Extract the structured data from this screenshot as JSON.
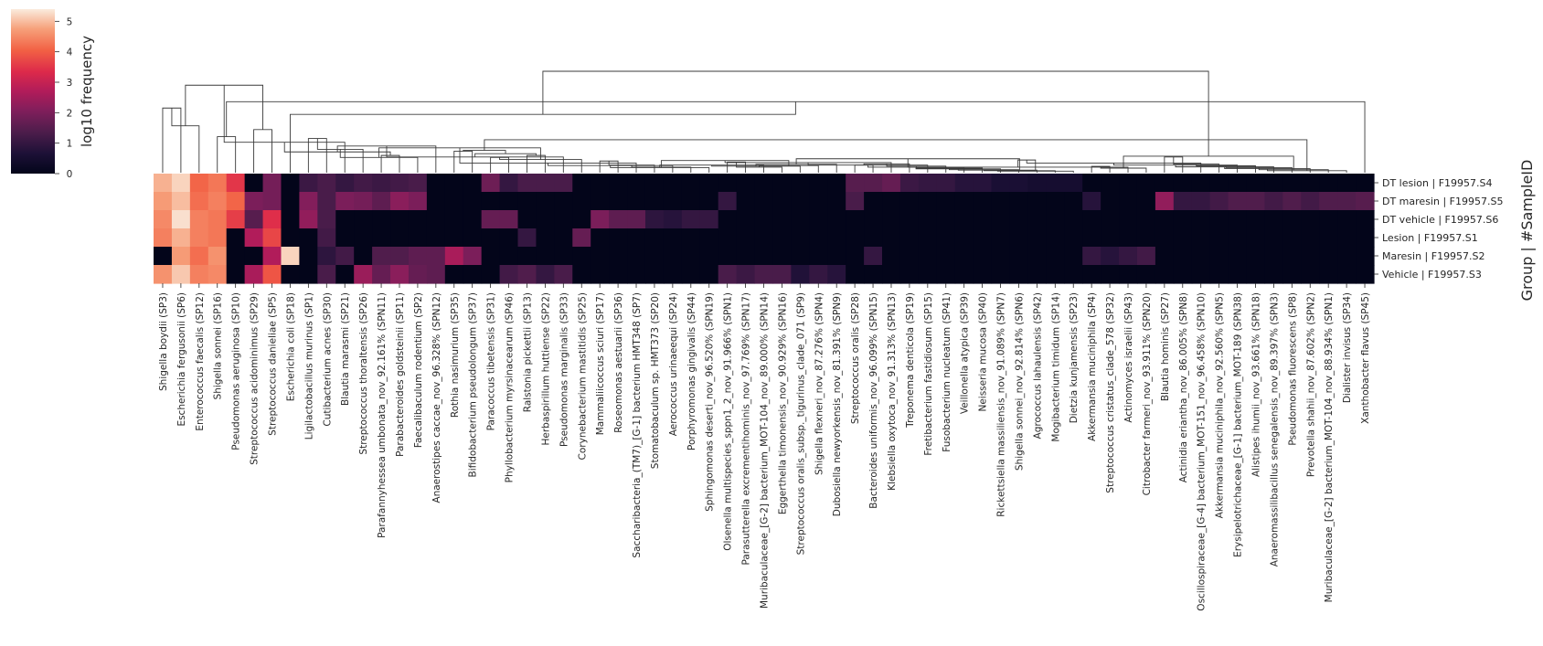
{
  "chart_data": {
    "type": "heatmap",
    "colorbar": {
      "label": "log10 frequency",
      "ticks": [
        0,
        1,
        2,
        3,
        4,
        5
      ],
      "range": [
        0,
        5.4
      ]
    },
    "ylabel": "Group | #SampleID",
    "rows": [
      "DT lesion | F19957.S4",
      "DT maresin | F19957.S5",
      "DT vehicle | F19957.S6",
      "Lesion | F19957.S1",
      "Maresin | F19957.S2",
      "Vehicle | F19957.S3"
    ],
    "columns": [
      "Shigella boydii (SP3)",
      "Escherichia fergusonii (SP6)",
      "Enterococcus faecalis (SP12)",
      "Shigella sonnei (SP16)",
      "Pseudomonas aeruginosa (SP10)",
      "Streptococcus acidominimus (SP29)",
      "Streptococcus danieliae (SP5)",
      "Escherichia coli (SP18)",
      "Ligilactobacillus murinus (SP1)",
      "Cutibacterium acnes (SP30)",
      "Blautia marasmi (SP21)",
      "Streptococcus thoraltensis (SP26)",
      "Parafannyhessea umbonata_nov_92.161% (SPN11)",
      "Parabacteroides goldsteinii (SP11)",
      "Faecalibaculum rodentium (SP2)",
      "Anaerostipes caccae_nov_96.328% (SPN12)",
      "Rothia nasimurium (SP35)",
      "Bifidobacterium pseudolongum (SP37)",
      "Paracoccus tibetensis (SP31)",
      "Phyllobacterium myrsinacearum (SP46)",
      "Ralstonia pickettii (SP13)",
      "Herbaspirillum huttiense (SP22)",
      "Pseudomonas marginalis (SP33)",
      "Corynebacterium mastitidis (SP25)",
      "Mammaliicoccus sciuri (SP17)",
      "Roseomonas aestuarii (SP36)",
      "Saccharibacteria_(TM7)_[G-1] bacterium HMT348 (SP7)",
      "Stomatobaculum sp. HMT373 (SP20)",
      "Aerococcus urinaeequi (SP24)",
      "Porphyromonas gingivalis (SP44)",
      "Sphingomonas deserti_nov_96.520% (SPN19)",
      "Olsenella multispecies_sppn1_2_nov_91.966% (SPN1)",
      "Parasutterella excrementihominis_nov_97.769% (SPN17)",
      "Muribaculaceae_[G-2] bacterium_MOT-104_nov_89.000% (SPN14)",
      "Eggerthella timonensis_nov_90.929% (SPN16)",
      "Streptococcus oralis_subsp._tigurinus_clade_071 (SP9)",
      "Shigella flexneri_nov_87.276% (SPN4)",
      "Dubosiella newyorkensis_nov_81.391% (SPN9)",
      "Streptococcus oralis (SP28)",
      "Bacteroides uniformis_nov_96.099% (SPN15)",
      "Klebsiella oxytoca_nov_91.313% (SPN13)",
      "Treponema denticola (SP19)",
      "Fretibacterium fastidiosum (SP15)",
      "Fusobacterium nucleatum (SP41)",
      "Veillonella atypica (SP39)",
      "Neisseria mucosa (SP40)",
      "Rickettsiella massiliensis_nov_91.089% (SPN7)",
      "Shigella sonnei_nov_92.814% (SPN6)",
      "Agrococcus lahaulensis (SP42)",
      "Mogibacterium timidum (SP14)",
      "Dietzia kunjamensis (SP23)",
      "Akkermansia muciniphila (SP4)",
      "Streptococcus cristatus_clade_578 (SP32)",
      "Actinomyces israelii (SP43)",
      "Citrobacter farmeri_nov_93.911% (SPN20)",
      "Blautia hominis (SP27)",
      "Actinidia eriantha_nov_86.005% (SPN8)",
      "Oscillospiraceae_[G-4] bacterium_MOT-151_nov_96.458% (SPN10)",
      "Akkermansia muciniphila_nov_92.560% (SPN5)",
      "Erysipelotrichaceae_[G-1] bacterium_MOT-189 (SPN38)",
      "Alistipes ihumii_nov_93.661% (SPN18)",
      "Anaeromassilibacillus senegalensis_nov_89.397% (SPN3)",
      "Pseudomonas fluorescens (SP8)",
      "Prevotella shahii_nov_87.602% (SPN2)",
      "Muribaculaceae_[G-2] bacterium_MOT-104_nov_88.934% (SPN1)",
      "Dialister invisus (SP34)",
      "Xanthobacter flavus (SP45)"
    ],
    "values": [
      [
        4.9,
        5.2,
        4.1,
        4.3,
        3.5,
        0,
        1.9,
        0,
        1.1,
        1.3,
        1.0,
        1.2,
        1.1,
        1.2,
        1.3,
        0,
        0,
        0,
        1.8,
        1.0,
        1.3,
        1.3,
        1.3,
        0,
        0,
        0,
        0,
        0,
        0,
        0,
        0,
        0,
        0,
        0,
        0,
        0,
        0,
        0,
        1.5,
        1.5,
        1.7,
        1.1,
        1.0,
        1.0,
        0.8,
        0.8,
        0.6,
        0.6,
        0.5,
        0.5,
        0.5,
        0,
        0,
        0,
        0,
        0,
        0,
        0,
        0,
        0,
        0,
        0,
        0,
        0,
        0,
        0,
        0
      ],
      [
        4.7,
        5.0,
        4.2,
        4.4,
        4.1,
        2.0,
        1.9,
        0,
        2.1,
        1.3,
        2.0,
        1.9,
        1.6,
        2.2,
        2.0,
        0,
        0,
        0,
        0,
        0,
        0,
        0,
        0,
        0,
        0,
        0,
        0,
        0,
        0,
        0,
        0,
        1.0,
        0,
        0,
        0,
        0,
        0,
        0,
        1.3,
        0,
        0,
        0,
        0,
        0,
        0,
        0,
        0,
        0,
        0,
        0,
        0,
        0.8,
        0,
        0,
        0,
        2.3,
        1.0,
        1.0,
        1.2,
        1.4,
        1.4,
        1.2,
        1.4,
        1.2,
        1.4,
        1.4,
        1.5
      ],
      [
        4.5,
        5.3,
        4.4,
        4.3,
        3.6,
        1.5,
        3.4,
        0,
        2.3,
        1.3,
        0,
        0,
        0,
        0,
        0,
        0,
        0,
        0,
        1.7,
        1.7,
        0,
        0,
        0,
        0,
        2.0,
        1.6,
        1.6,
        0.9,
        0.8,
        1.0,
        1.0,
        0,
        0,
        0,
        0,
        0,
        0,
        0,
        0,
        0,
        0,
        0,
        0,
        0,
        0,
        0,
        0,
        0,
        0,
        0,
        0,
        0,
        0,
        0,
        0,
        0,
        0,
        0,
        0,
        0,
        0,
        0,
        0,
        0,
        0,
        0,
        0
      ],
      [
        4.4,
        4.9,
        4.4,
        4.3,
        0,
        2.7,
        3.7,
        0,
        0,
        1.2,
        0,
        0,
        0,
        0,
        0,
        0,
        0,
        0,
        0,
        0,
        1.0,
        0,
        0,
        1.7,
        0,
        0,
        0,
        0,
        0,
        0,
        0,
        0,
        0,
        0,
        0,
        0,
        0,
        0,
        0,
        0,
        0,
        0,
        0,
        0,
        0,
        0,
        0,
        0,
        0,
        0,
        0,
        0,
        0,
        0,
        0,
        0,
        0,
        0,
        0,
        0,
        0,
        0,
        0,
        0,
        0,
        0,
        0
      ],
      [
        0,
        4.7,
        4.2,
        4.6,
        0,
        0,
        2.7,
        5.2,
        0,
        0.9,
        1.2,
        0,
        1.4,
        1.4,
        1.6,
        1.6,
        2.6,
        2.0,
        0,
        0,
        0,
        0,
        0,
        0,
        0,
        0,
        0,
        0,
        0,
        0,
        0,
        0,
        0,
        0,
        0,
        0,
        0,
        0,
        0,
        1.0,
        0,
        0,
        0,
        0,
        0,
        0,
        0,
        0,
        0,
        0,
        0,
        1.0,
        0.8,
        1.0,
        1.2,
        0,
        0,
        0,
        0,
        0,
        0,
        0,
        0,
        0,
        0,
        0,
        0
      ],
      [
        4.6,
        5.1,
        4.4,
        4.5,
        0,
        2.6,
        3.9,
        0,
        0,
        1.3,
        0,
        2.4,
        1.7,
        2.2,
        1.7,
        1.6,
        0,
        0,
        0,
        1.2,
        1.4,
        1.0,
        1.3,
        0,
        0,
        0,
        0,
        0,
        0,
        0,
        0,
        1.3,
        1.1,
        1.3,
        1.3,
        0.7,
        1.0,
        0.8,
        0,
        0,
        0,
        0,
        0,
        0,
        0,
        0,
        0,
        0,
        0,
        0,
        0,
        0,
        0,
        0,
        0,
        0,
        0,
        0,
        0,
        0,
        0,
        0,
        0,
        0,
        0,
        0,
        0
      ]
    ],
    "dendrogram_merges": [
      [
        0,
        1,
        2.55
      ],
      [
        3,
        4,
        1.42
      ],
      [
        2,
        67,
        1.85
      ],
      [
        68,
        66,
        2.8
      ],
      [
        5,
        6,
        1.7
      ],
      [
        70,
        7,
        2.3
      ],
      [
        69,
        71,
        3.45
      ],
      [
        8,
        9,
        1.35
      ],
      [
        73,
        10,
        1.2
      ],
      [
        74,
        11,
        0.92
      ],
      [
        12,
        13,
        0.68
      ],
      [
        76,
        14,
        0.6
      ],
      [
        75,
        77,
        0.82
      ],
      [
        16,
        17,
        0.85
      ],
      [
        79,
        15,
        1.05
      ],
      [
        20,
        21,
        0.68
      ],
      [
        81,
        22,
        0.62
      ],
      [
        18,
        19,
        0.6
      ],
      [
        82,
        83,
        0.75
      ],
      [
        84,
        23,
        0.52
      ],
      [
        80,
        85,
        0.88
      ],
      [
        78,
        86,
        0.98
      ],
      [
        24,
        25,
        0.46
      ],
      [
        88,
        26,
        0.38
      ],
      [
        89,
        27,
        0.3
      ],
      [
        90,
        28,
        0.28
      ],
      [
        91,
        29,
        0.22
      ],
      [
        92,
        30,
        0.2
      ],
      [
        31,
        32,
        0.42
      ],
      [
        94,
        33,
        0.3
      ],
      [
        95,
        34,
        0.22
      ],
      [
        96,
        35,
        0.26
      ],
      [
        97,
        36,
        0.28
      ],
      [
        98,
        37,
        0.33
      ],
      [
        93,
        99,
        0.48
      ],
      [
        38,
        39,
        0.3
      ],
      [
        101,
        40,
        0.4
      ],
      [
        102,
        41,
        0.35
      ],
      [
        103,
        42,
        0.3
      ],
      [
        104,
        43,
        0.26
      ],
      [
        105,
        44,
        0.22
      ],
      [
        106,
        45,
        0.18
      ],
      [
        107,
        46,
        0.15
      ],
      [
        108,
        47,
        0.12
      ],
      [
        109,
        48,
        0.1
      ],
      [
        110,
        49,
        0.08
      ],
      [
        111,
        50,
        0.06
      ],
      [
        100,
        112,
        0.55
      ],
      [
        51,
        52,
        0.25
      ],
      [
        114,
        53,
        0.22
      ],
      [
        115,
        54,
        0.18
      ],
      [
        113,
        116,
        0.5
      ],
      [
        55,
        56,
        0.62
      ],
      [
        118,
        57,
        0.38
      ],
      [
        119,
        58,
        0.34
      ],
      [
        120,
        59,
        0.3
      ],
      [
        121,
        60,
        0.27
      ],
      [
        122,
        61,
        0.23
      ],
      [
        123,
        62,
        0.2
      ],
      [
        124,
        63,
        0.16
      ],
      [
        125,
        64,
        0.12
      ],
      [
        126,
        65,
        0.08
      ],
      [
        117,
        127,
        0.65
      ],
      [
        87,
        128,
        1.3
      ],
      [
        72,
        129,
        4.0
      ]
    ]
  }
}
